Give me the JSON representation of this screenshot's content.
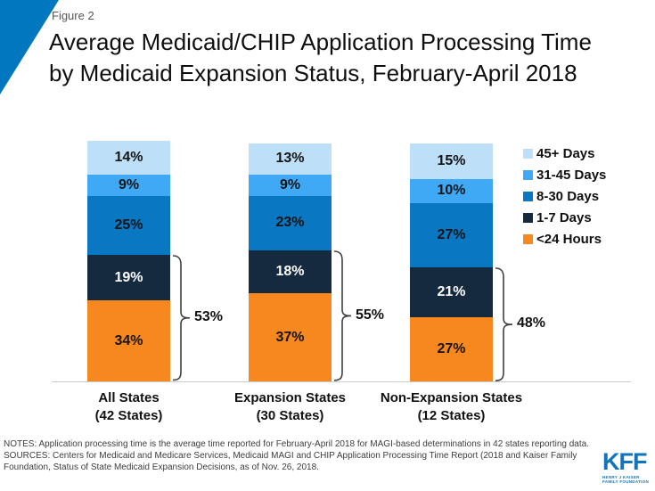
{
  "figure_label": "Figure 2",
  "title_lines": [
    "Average Medicaid/CHIP Application Processing Time",
    "by Medicaid Expansion Status, February-April 2018"
  ],
  "chart_data": {
    "type": "bar",
    "subtype": "stacked-percent-columns",
    "title": "Average Medicaid/CHIP Application Processing Time by Medicaid Expansion Status, February-April 2018",
    "categories": [
      {
        "name": "All States",
        "sub": "(42 States)"
      },
      {
        "name": "Expansion States",
        "sub": "(30 States)"
      },
      {
        "name": "Non-Expansion States",
        "sub": "(12 States)"
      }
    ],
    "segments_bottom_to_top": [
      {
        "name": "<24 Hours",
        "color": "#F6881F",
        "label_color": "#141414",
        "values": [
          34,
          37,
          27
        ]
      },
      {
        "name": "1-7 Days",
        "color": "#152A3E",
        "label_color": "#FFFFFF",
        "values": [
          19,
          18,
          21
        ]
      },
      {
        "name": "8-30 Days",
        "color": "#0A77C2",
        "label_color": "#141414",
        "values": [
          25,
          23,
          27
        ]
      },
      {
        "name": "31-45 Days",
        "color": "#3FA9F5",
        "label_color": "#141414",
        "values": [
          9,
          9,
          10
        ]
      },
      {
        "name": "45+ Days",
        "color": "#BDDFF7",
        "label_color": "#141414",
        "values": [
          14,
          13,
          15
        ]
      }
    ],
    "legend_top_to_bottom": [
      "45+ Days",
      "31-45 Days",
      "8-30 Days",
      "1-7 Days",
      "<24 Hours"
    ],
    "legend_position": "right",
    "value_suffix": "%",
    "brackets": {
      "covers_segments": [
        "<24 Hours",
        "1-7 Days"
      ],
      "values": [
        53,
        55,
        48
      ],
      "labels": [
        "53%",
        "55%",
        "48%"
      ]
    }
  },
  "notes_lines": [
    "NOTES: Application processing time is the average time reported for February-April 2018 for MAGI-based determinations in 42 states reporting data.",
    "SOURCES: Centers for Medicaid and Medicare Services, Medicaid MAGI and CHIP Application Processing Time Report (2018 and Kaiser Family",
    "Foundation, Status of State Medicaid Expansion Decisions, as of Nov. 26, 2018."
  ],
  "logo": {
    "text": "KFF",
    "sub_line1": "HENRY J KAISER",
    "sub_line2": "FAMILY FOUNDATION"
  },
  "colors": {
    "corner_accent": "#0077BE",
    "axis_line": "#CBCBCB",
    "bracket_stroke": "#3F3F3F",
    "kff_blue": "#1273B9",
    "figure_label_gray": "#565656"
  }
}
